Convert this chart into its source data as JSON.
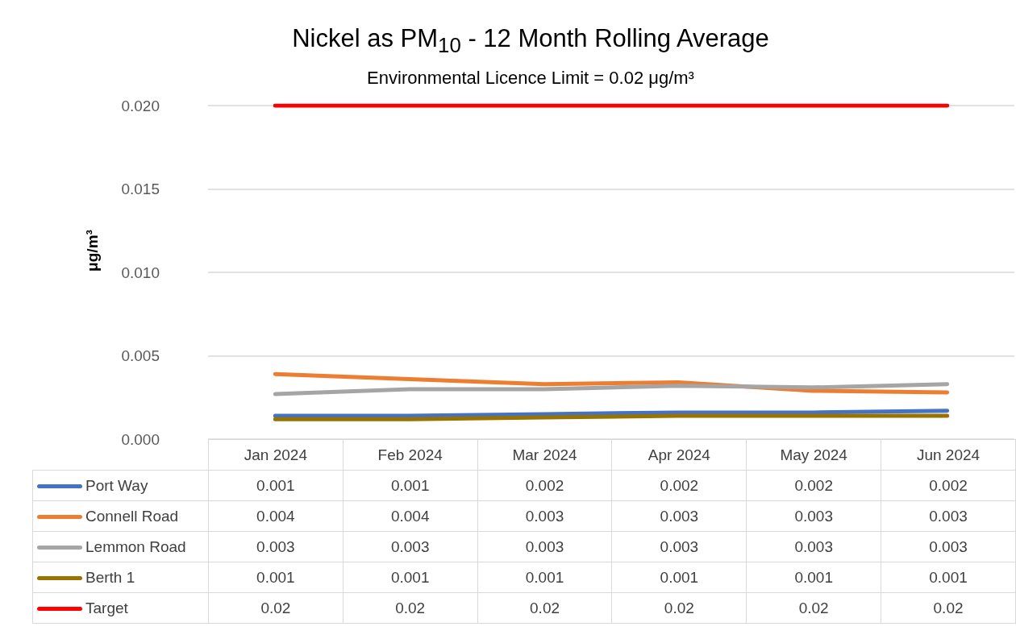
{
  "chart_data": {
    "type": "line",
    "title": "Nickel as PM$_{10}$ - 12 Month Rolling Average",
    "subtitle": "Environmental Licence Limit = 0.02 μg/m³",
    "ylabel": "μg/m³",
    "categories": [
      "Jan 2024",
      "Feb 2024",
      "Mar 2024",
      "Apr 2024",
      "May 2024",
      "Jun 2024"
    ],
    "series": [
      {
        "name": "Port Way",
        "color": "#4472c4",
        "values": [
          0.0014,
          0.0014,
          0.0015,
          0.0016,
          0.0016,
          0.0017
        ],
        "value_labels": [
          "0.001",
          "0.001",
          "0.002",
          "0.002",
          "0.002",
          "0.002"
        ]
      },
      {
        "name": "Connell Road",
        "color": "#ed7d31",
        "values": [
          0.0039,
          0.0036,
          0.0033,
          0.0034,
          0.0029,
          0.0028
        ],
        "value_labels": [
          "0.004",
          "0.004",
          "0.003",
          "0.003",
          "0.003",
          "0.003"
        ]
      },
      {
        "name": "Lemmon Road",
        "color": "#a5a5a5",
        "values": [
          0.0027,
          0.003,
          0.003,
          0.0032,
          0.0031,
          0.0033
        ],
        "value_labels": [
          "0.003",
          "0.003",
          "0.003",
          "0.003",
          "0.003",
          "0.003"
        ]
      },
      {
        "name": "Berth 1",
        "color": "#997300",
        "values": [
          0.0012,
          0.0012,
          0.0013,
          0.0014,
          0.0014,
          0.0014
        ],
        "value_labels": [
          "0.001",
          "0.001",
          "0.001",
          "0.001",
          "0.001",
          "0.001"
        ]
      },
      {
        "name": "Target",
        "color": "#ff0000",
        "values": [
          0.02,
          0.02,
          0.02,
          0.02,
          0.02,
          0.02
        ],
        "value_labels": [
          "0.02",
          "0.02",
          "0.02",
          "0.02",
          "0.02",
          "0.02"
        ]
      }
    ],
    "ylim": [
      0,
      0.02
    ],
    "yticks": [
      {
        "value": 0,
        "label": "0.000"
      },
      {
        "value": 0.005,
        "label": "0.005"
      },
      {
        "value": 0.01,
        "label": "0.010"
      },
      {
        "value": 0.015,
        "label": "0.015"
      },
      {
        "value": 0.02,
        "label": "0.020"
      }
    ],
    "grid": "y",
    "legend": "bottom",
    "marker": "none",
    "line_style": "solid"
  }
}
